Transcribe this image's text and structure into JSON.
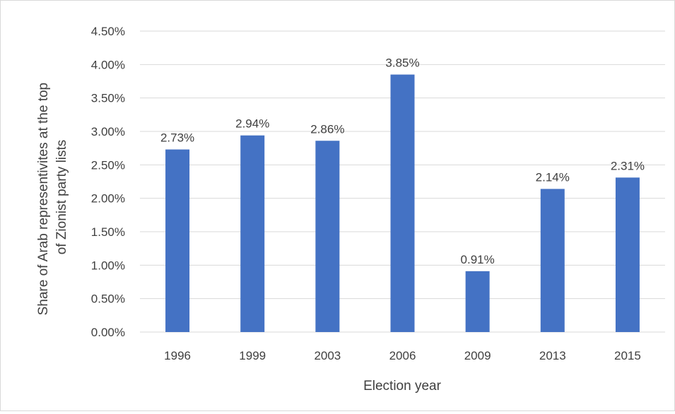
{
  "chart_data": {
    "type": "bar",
    "categories": [
      "1996",
      "1999",
      "2003",
      "2006",
      "2009",
      "2013",
      "2015"
    ],
    "values": [
      2.73,
      2.94,
      2.86,
      3.85,
      0.91,
      2.14,
      2.31
    ],
    "data_labels": [
      "2.73%",
      "2.94%",
      "2.86%",
      "3.85%",
      "0.91%",
      "2.14%",
      "2.31%"
    ],
    "xlabel": "Election year",
    "ylabel_lines": [
      "Share of Arab representivites at the top",
      "of Zionist party lists"
    ],
    "ylim": [
      0,
      4.5
    ],
    "yticks": [
      0,
      0.5,
      1,
      1.5,
      2,
      2.5,
      3,
      3.5,
      4,
      4.5
    ],
    "ytick_labels": [
      "0.00%",
      "0.50%",
      "1.00%",
      "1.50%",
      "2.00%",
      "2.50%",
      "3.00%",
      "3.50%",
      "4.00%",
      "4.50%"
    ],
    "grid": true,
    "bar_color": "#4472c4",
    "grid_color": "#d9d9d9"
  }
}
